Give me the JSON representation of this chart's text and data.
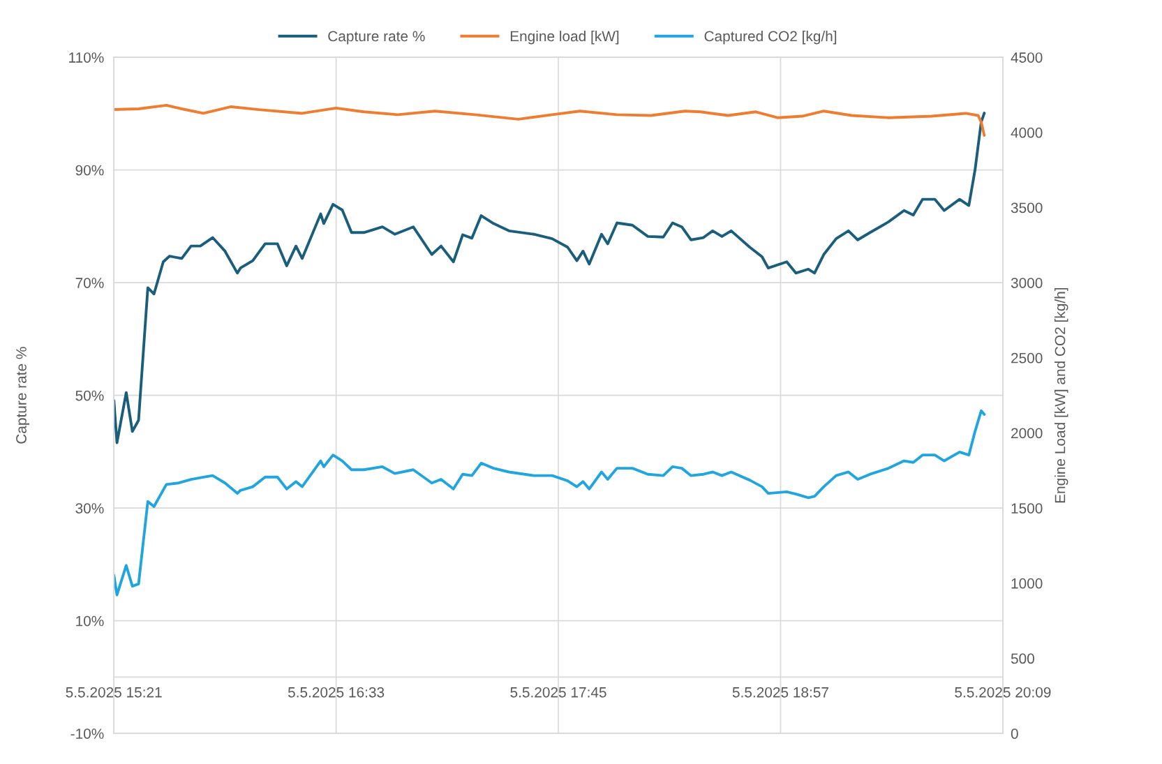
{
  "chart_data": {
    "type": "line",
    "ylabel": "Capture rate %",
    "y2label": "Engine Load [kW] and CO2 [kg/h]",
    "xlim": [
      "2025-05-05T15:21",
      "2025-05-05T20:09"
    ],
    "xticks": [
      {
        "value": "2025-05-05T15:21",
        "label": "5.5.2025 15:21"
      },
      {
        "value": "2025-05-05T16:33",
        "label": "5.5.2025 16:33"
      },
      {
        "value": "2025-05-05T17:45",
        "label": "5.5.2025 17:45"
      },
      {
        "value": "2025-05-05T18:57",
        "label": "5.5.2025 18:57"
      },
      {
        "value": "2025-05-05T20:09",
        "label": "5.5.2025 20:09"
      }
    ],
    "ylim": [
      -10,
      110
    ],
    "yticks": [
      {
        "value": -10,
        "label": "-10%"
      },
      {
        "value": 10,
        "label": "10%"
      },
      {
        "value": 30,
        "label": "30%"
      },
      {
        "value": 50,
        "label": "50%"
      },
      {
        "value": 70,
        "label": "70%"
      },
      {
        "value": 90,
        "label": "90%"
      },
      {
        "value": 110,
        "label": "110%"
      }
    ],
    "y2lim": [
      0,
      4500
    ],
    "y2ticks": [
      0,
      500,
      1000,
      1500,
      2000,
      2500,
      3000,
      3500,
      4000,
      4500
    ],
    "grid": true,
    "legend": "top",
    "marker": "none",
    "line_style": "solid",
    "series": [
      {
        "name": "Capture rate %",
        "color": "#1b5e7b",
        "x": [
          "2025-05-05T15:21",
          "2025-05-05T15:22",
          "2025-05-05T15:25",
          "2025-05-05T15:27",
          "2025-05-05T15:29",
          "2025-05-05T15:32",
          "2025-05-05T15:34",
          "2025-05-05T15:37",
          "2025-05-05T15:39",
          "2025-05-05T15:43",
          "2025-05-05T15:46",
          "2025-05-05T15:49",
          "2025-05-05T15:53",
          "2025-05-05T15:57",
          "2025-05-05T16:01",
          "2025-05-05T16:02",
          "2025-05-05T16:06",
          "2025-05-05T16:10",
          "2025-05-05T16:14",
          "2025-05-05T16:17",
          "2025-05-05T16:20",
          "2025-05-05T16:22",
          "2025-05-05T16:28",
          "2025-05-05T16:29",
          "2025-05-05T16:32",
          "2025-05-05T16:35",
          "2025-05-05T16:38",
          "2025-05-05T16:42",
          "2025-05-05T16:48",
          "2025-05-05T16:52",
          "2025-05-05T16:58",
          "2025-05-05T17:04",
          "2025-05-05T17:07",
          "2025-05-05T17:11",
          "2025-05-05T17:14",
          "2025-05-05T17:17",
          "2025-05-05T17:20",
          "2025-05-05T17:24",
          "2025-05-05T17:29",
          "2025-05-05T17:37",
          "2025-05-05T17:43",
          "2025-05-05T17:48",
          "2025-05-05T17:51",
          "2025-05-05T17:53",
          "2025-05-05T17:55",
          "2025-05-05T17:59",
          "2025-05-05T18:01",
          "2025-05-05T18:04",
          "2025-05-05T18:09",
          "2025-05-05T18:14",
          "2025-05-05T18:19",
          "2025-05-05T18:22",
          "2025-05-05T18:25",
          "2025-05-05T18:28",
          "2025-05-05T18:32",
          "2025-05-05T18:35",
          "2025-05-05T18:38",
          "2025-05-05T18:41",
          "2025-05-05T18:47",
          "2025-05-05T18:51",
          "2025-05-05T18:53",
          "2025-05-05T18:59",
          "2025-05-05T19:02",
          "2025-05-05T19:06",
          "2025-05-05T19:08",
          "2025-05-05T19:11",
          "2025-05-05T19:15",
          "2025-05-05T19:19",
          "2025-05-05T19:22",
          "2025-05-05T19:26",
          "2025-05-05T19:32",
          "2025-05-05T19:37",
          "2025-05-05T19:40",
          "2025-05-05T19:43",
          "2025-05-05T19:47",
          "2025-05-05T19:50",
          "2025-05-05T19:55",
          "2025-05-05T19:58",
          "2025-05-05T20:00",
          "2025-05-05T20:02",
          "2025-05-05T20:03"
        ],
        "values": [
          49.1,
          41.6,
          50.5,
          43.6,
          45.6,
          69.1,
          68.0,
          73.7,
          74.7,
          74.3,
          76.5,
          76.5,
          78.0,
          75.6,
          71.7,
          72.6,
          73.9,
          76.9,
          76.9,
          73.0,
          76.5,
          74.3,
          82.2,
          80.5,
          83.9,
          82.9,
          78.9,
          78.9,
          79.9,
          78.6,
          79.9,
          75.0,
          76.5,
          73.7,
          78.5,
          77.9,
          81.9,
          80.5,
          79.2,
          78.6,
          77.8,
          76.3,
          73.9,
          75.6,
          73.3,
          78.6,
          76.9,
          80.6,
          80.2,
          78.2,
          78.1,
          80.6,
          79.9,
          77.6,
          78.0,
          79.2,
          78.2,
          79.2,
          76.3,
          74.6,
          72.6,
          73.7,
          71.7,
          72.4,
          71.7,
          75.0,
          77.8,
          79.2,
          77.6,
          78.9,
          80.8,
          82.8,
          82.0,
          84.8,
          84.8,
          82.8,
          84.8,
          83.7,
          90.0,
          98.5,
          100.1
        ]
      },
      {
        "name": "Engine load [kW]",
        "color": "#ed7d31",
        "axis": "y2",
        "x": [
          "2025-05-05T15:21",
          "2025-05-05T15:29",
          "2025-05-05T15:38",
          "2025-05-05T15:43",
          "2025-05-05T15:50",
          "2025-05-05T15:59",
          "2025-05-05T16:08",
          "2025-05-05T16:22",
          "2025-05-05T16:33",
          "2025-05-05T16:42",
          "2025-05-05T16:53",
          "2025-05-05T17:05",
          "2025-05-05T17:18",
          "2025-05-05T17:32",
          "2025-05-05T17:43",
          "2025-05-05T17:52",
          "2025-05-05T18:04",
          "2025-05-05T18:15",
          "2025-05-05T18:26",
          "2025-05-05T18:31",
          "2025-05-05T18:40",
          "2025-05-05T18:49",
          "2025-05-05T18:56",
          "2025-05-05T19:04",
          "2025-05-05T19:11",
          "2025-05-05T19:20",
          "2025-05-05T19:32",
          "2025-05-05T19:46",
          "2025-05-05T19:57",
          "2025-05-05T20:01",
          "2025-05-05T20:02",
          "2025-05-05T20:03"
        ],
        "values": [
          4152,
          4157,
          4181,
          4157,
          4127,
          4171,
          4152,
          4127,
          4162,
          4137,
          4118,
          4142,
          4118,
          4088,
          4118,
          4142,
          4118,
          4113,
          4142,
          4137,
          4113,
          4137,
          4098,
          4108,
          4142,
          4113,
          4098,
          4108,
          4127,
          4113,
          4069,
          3980
        ]
      },
      {
        "name": "Captured CO2 [kg/h]",
        "color": "#22a5dd",
        "axis": "y2",
        "x": [
          "2025-05-05T15:21",
          "2025-05-05T15:22",
          "2025-05-05T15:25",
          "2025-05-05T15:27",
          "2025-05-05T15:29",
          "2025-05-05T15:32",
          "2025-05-05T15:34",
          "2025-05-05T15:38",
          "2025-05-05T15:42",
          "2025-05-05T15:46",
          "2025-05-05T15:50",
          "2025-05-05T15:53",
          "2025-05-05T15:57",
          "2025-05-05T16:01",
          "2025-05-05T16:02",
          "2025-05-05T16:06",
          "2025-05-05T16:10",
          "2025-05-05T16:14",
          "2025-05-05T16:17",
          "2025-05-05T16:20",
          "2025-05-05T16:22",
          "2025-05-05T16:28",
          "2025-05-05T16:29",
          "2025-05-05T16:32",
          "2025-05-05T16:35",
          "2025-05-05T16:38",
          "2025-05-05T16:42",
          "2025-05-05T16:48",
          "2025-05-05T16:52",
          "2025-05-05T16:58",
          "2025-05-05T17:04",
          "2025-05-05T17:07",
          "2025-05-05T17:11",
          "2025-05-05T17:14",
          "2025-05-05T17:17",
          "2025-05-05T17:20",
          "2025-05-05T17:24",
          "2025-05-05T17:29",
          "2025-05-05T17:37",
          "2025-05-05T17:43",
          "2025-05-05T17:48",
          "2025-05-05T17:51",
          "2025-05-05T17:53",
          "2025-05-05T17:55",
          "2025-05-05T17:59",
          "2025-05-05T18:01",
          "2025-05-05T18:04",
          "2025-05-05T18:09",
          "2025-05-05T18:14",
          "2025-05-05T18:19",
          "2025-05-05T18:22",
          "2025-05-05T18:25",
          "2025-05-05T18:28",
          "2025-05-05T18:32",
          "2025-05-05T18:35",
          "2025-05-05T18:38",
          "2025-05-05T18:41",
          "2025-05-05T18:47",
          "2025-05-05T18:51",
          "2025-05-05T18:53",
          "2025-05-05T18:59",
          "2025-05-05T19:02",
          "2025-05-05T19:06",
          "2025-05-05T19:08",
          "2025-05-05T19:11",
          "2025-05-05T19:15",
          "2025-05-05T19:19",
          "2025-05-05T19:22",
          "2025-05-05T19:26",
          "2025-05-05T19:32",
          "2025-05-05T19:37",
          "2025-05-05T19:40",
          "2025-05-05T19:43",
          "2025-05-05T19:47",
          "2025-05-05T19:50",
          "2025-05-05T19:55",
          "2025-05-05T19:58",
          "2025-05-05T20:00",
          "2025-05-05T20:02",
          "2025-05-05T20:03"
        ],
        "values": [
          1054,
          922,
          1118,
          980,
          995,
          1544,
          1510,
          1657,
          1667,
          1691,
          1706,
          1716,
          1667,
          1598,
          1618,
          1642,
          1706,
          1706,
          1627,
          1676,
          1642,
          1814,
          1775,
          1853,
          1814,
          1755,
          1755,
          1775,
          1730,
          1755,
          1667,
          1691,
          1627,
          1725,
          1716,
          1799,
          1765,
          1740,
          1716,
          1716,
          1681,
          1642,
          1676,
          1627,
          1740,
          1691,
          1765,
          1765,
          1725,
          1716,
          1775,
          1765,
          1716,
          1725,
          1740,
          1716,
          1740,
          1686,
          1642,
          1598,
          1608,
          1593,
          1569,
          1578,
          1642,
          1716,
          1740,
          1691,
          1725,
          1765,
          1814,
          1804,
          1853,
          1853,
          1814,
          1873,
          1853,
          2010,
          2147,
          2123
        ]
      }
    ]
  }
}
